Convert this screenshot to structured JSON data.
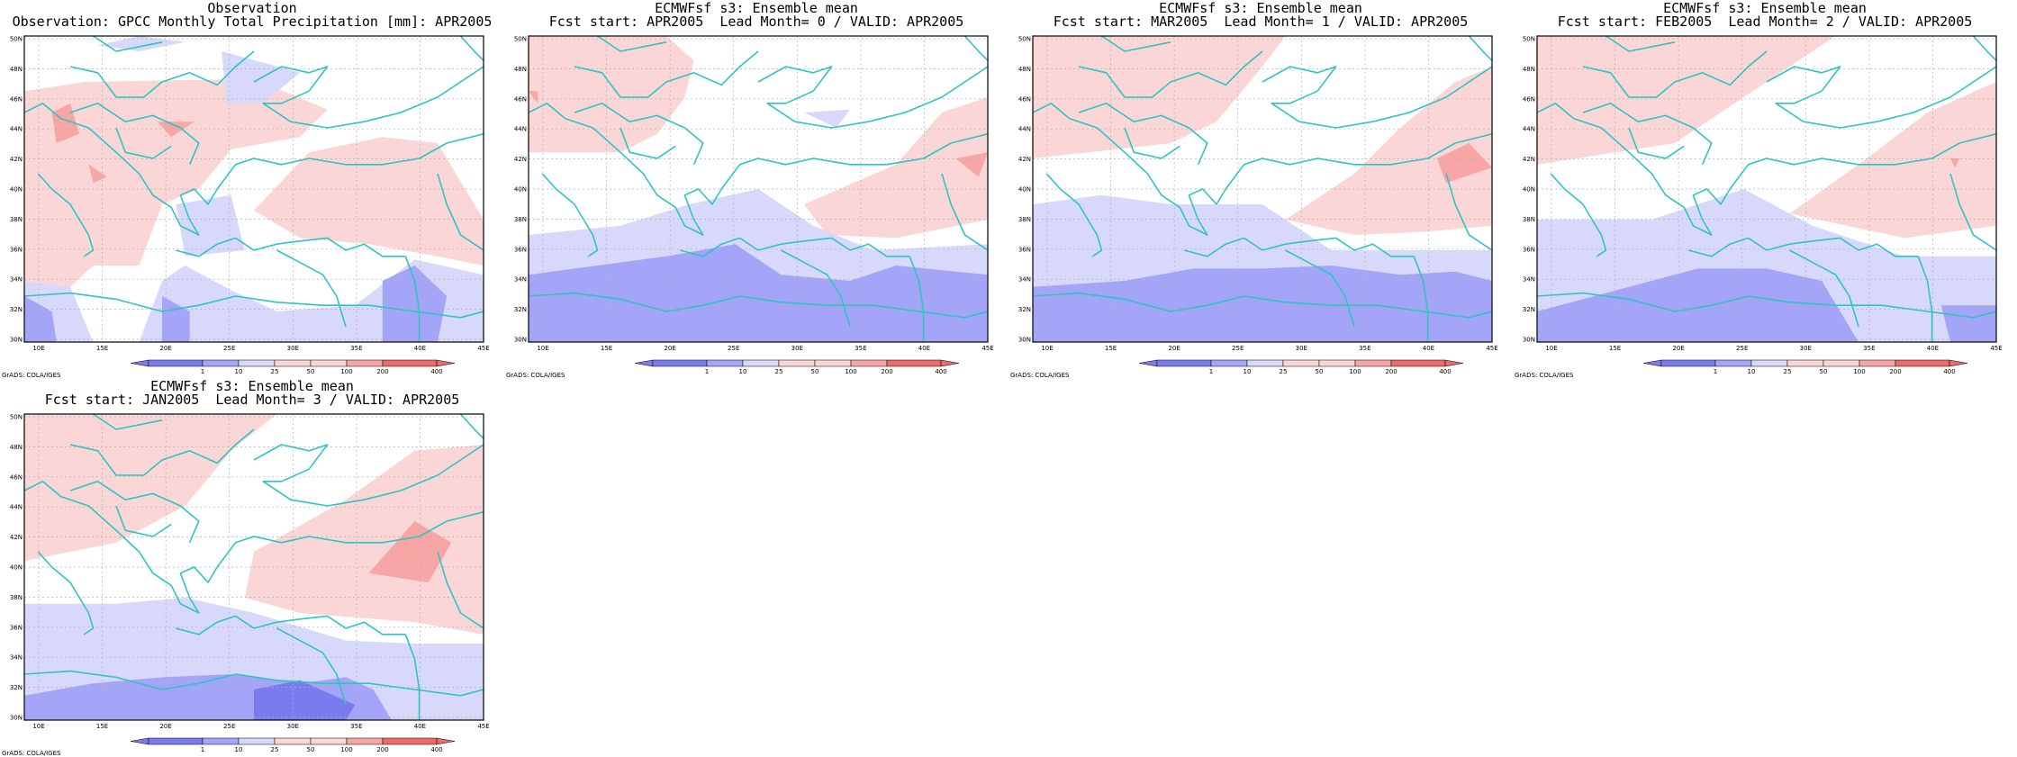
{
  "colors": {
    "frame": "#000000",
    "coastline": "#2ec4c4",
    "grid": "#b0b0b0",
    "neg3": "#7b7bf0",
    "neg2": "#a4a4f8",
    "neg1": "#d8d8fa",
    "pos1": "#fbd6d6",
    "pos2": "#f7a5a5",
    "pos3": "#ef6a6a"
  },
  "map": {
    "lon_range": [
      8,
      46
    ],
    "lat_range": [
      30,
      51
    ],
    "lon_ticks": [
      "10E",
      "15E",
      "20E",
      "25E",
      "30E",
      "35E",
      "40E",
      "45E"
    ],
    "lat_ticks": [
      "30N",
      "32N",
      "34N",
      "36N",
      "38N",
      "40N",
      "42N",
      "44N",
      "46N",
      "48N",
      "50N"
    ],
    "grid": "dotted"
  },
  "colorbar": {
    "labels": [
      "1",
      "10",
      "25",
      "50",
      "100",
      "200",
      "400"
    ]
  },
  "panels": [
    {
      "title_line1": "Observation",
      "title_line2": "Observation: GPCC Monthly Total Precipitation [mm]: APR2005",
      "credit": "GrADS: COLA/IGES"
    },
    {
      "title_line1": "ECMWFsf s3: Ensemble mean",
      "title_line2": "Fcst start: APR2005  Lead Month= 0 / VALID: APR2005",
      "credit": "GrADS: COLA/IGES"
    },
    {
      "title_line1": "ECMWFsf s3: Ensemble mean",
      "title_line2": "Fcst start: MAR2005  Lead Month= 1 / VALID: APR2005",
      "credit": "GrADS: COLA/IGES"
    },
    {
      "title_line1": "ECMWFsf s3: Ensemble mean",
      "title_line2": "Fcst start: FEB2005  Lead Month= 2 / VALID: APR2005",
      "credit": "GrADS: COLA/IGES"
    },
    {
      "title_line1": "ECMWFsf s3: Ensemble mean",
      "title_line2": "Fcst start: JAN2005  Lead Month= 3 / VALID: APR2005",
      "credit": "GrADS: COLA/IGES"
    }
  ]
}
